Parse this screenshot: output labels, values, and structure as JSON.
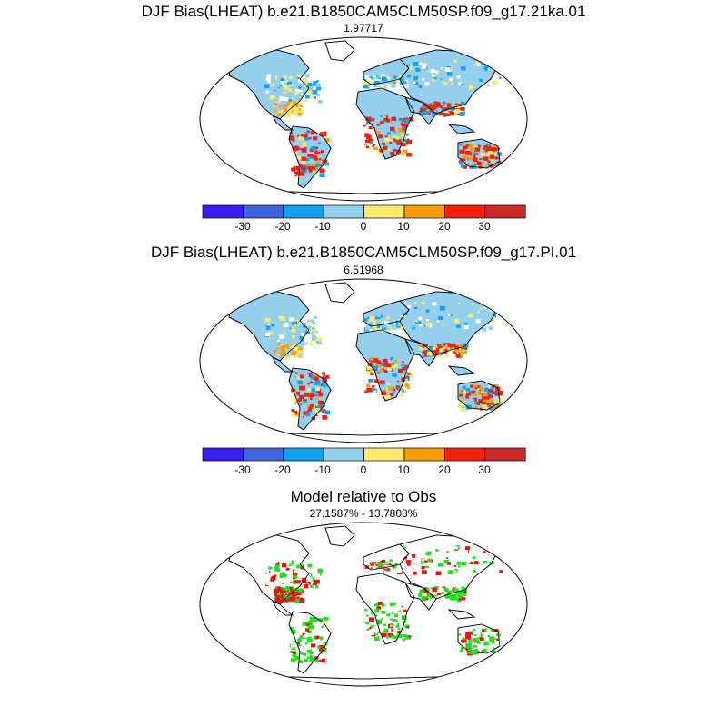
{
  "panels": [
    {
      "title": "DJF Bias(LHEAT) b.e21.B1850CAM5CLM50SP.f09_g17.21ka.01",
      "subtitle": "1.97717",
      "colorbar": {
        "colors": [
          "#3a1ef2",
          "#4064e0",
          "#12a0f0",
          "#94cfed",
          "#fbea6b",
          "#f99c08",
          "#f4200c",
          "#cc2b2b"
        ],
        "labels": [
          "-30",
          "-20",
          "-10",
          "0",
          "10",
          "20",
          "30"
        ]
      }
    },
    {
      "title": "DJF Bias(LHEAT) b.e21.B1850CAM5CLM50SP.f09_g17.PI.01",
      "subtitle": "6.51968",
      "colorbar": {
        "colors": [
          "#3a1ef2",
          "#4064e0",
          "#12a0f0",
          "#94cfed",
          "#fbea6b",
          "#f99c08",
          "#f4200c",
          "#cc2b2b"
        ],
        "labels": [
          "-30",
          "-20",
          "-10",
          "0",
          "10",
          "20",
          "30"
        ]
      }
    },
    {
      "title": "Model relative to Obs",
      "subtitle": "27.1587% - 13.7808%",
      "colors": {
        "better": "#22e01c",
        "worse": "#ee1111"
      }
    }
  ]
}
